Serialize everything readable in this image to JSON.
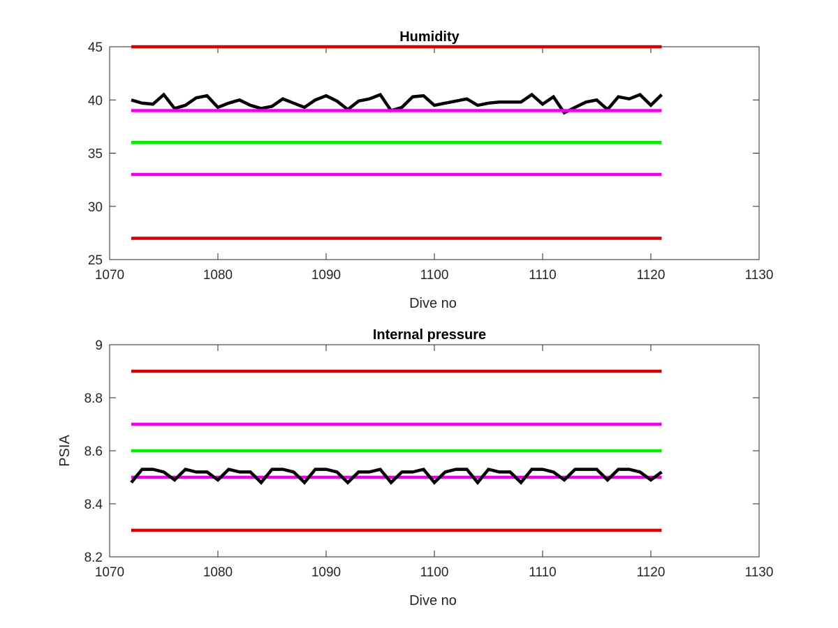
{
  "chart_data": [
    {
      "type": "line",
      "title": "Humidity",
      "xlabel": "Dive no",
      "ylabel": "",
      "xlim": [
        1070,
        1130
      ],
      "ylim": [
        25,
        45
      ],
      "xticks": [
        1070,
        1080,
        1090,
        1100,
        1110,
        1120,
        1130
      ],
      "yticks": [
        25,
        30,
        35,
        40,
        45
      ],
      "grid": false,
      "series": [
        {
          "color": "#000000",
          "x": [
            1072,
            1073,
            1074,
            1075,
            1076,
            1077,
            1078,
            1079,
            1080,
            1081,
            1082,
            1083,
            1084,
            1085,
            1086,
            1087,
            1088,
            1089,
            1090,
            1091,
            1092,
            1093,
            1094,
            1095,
            1096,
            1097,
            1098,
            1099,
            1100,
            1101,
            1102,
            1103,
            1104,
            1105,
            1106,
            1107,
            1108,
            1109,
            1110,
            1111,
            1112,
            1113,
            1114,
            1115,
            1116,
            1117,
            1118,
            1119,
            1120,
            1121
          ],
          "y": [
            40.0,
            39.7,
            39.6,
            40.5,
            39.2,
            39.5,
            40.2,
            40.4,
            39.3,
            39.7,
            40.0,
            39.5,
            39.2,
            39.4,
            40.1,
            39.7,
            39.3,
            40.0,
            40.4,
            39.9,
            39.1,
            39.9,
            40.1,
            40.5,
            39.0,
            39.3,
            40.3,
            40.4,
            39.5,
            39.7,
            39.9,
            40.1,
            39.5,
            39.7,
            39.8,
            39.8,
            39.8,
            40.5,
            39.6,
            40.3,
            38.8,
            39.3,
            39.8,
            40.0,
            39.1,
            40.3,
            40.1,
            40.5,
            39.5,
            40.5
          ]
        },
        {
          "color": "#d40000",
          "x": [
            1072,
            1121
          ],
          "y": [
            45,
            45
          ]
        },
        {
          "color": "#ee00ee",
          "x": [
            1072,
            1121
          ],
          "y": [
            39,
            39
          ]
        },
        {
          "color": "#00ee00",
          "x": [
            1072,
            1121
          ],
          "y": [
            36,
            36
          ]
        },
        {
          "color": "#ee00ee",
          "x": [
            1072,
            1121
          ],
          "y": [
            33,
            33
          ]
        },
        {
          "color": "#d40000",
          "x": [
            1072,
            1121
          ],
          "y": [
            27,
            27
          ]
        }
      ]
    },
    {
      "type": "line",
      "title": "Internal pressure",
      "xlabel": "Dive no",
      "ylabel": "PSIA",
      "xlim": [
        1070,
        1130
      ],
      "ylim": [
        8.2,
        9.0
      ],
      "xticks": [
        1070,
        1080,
        1090,
        1100,
        1110,
        1120,
        1130
      ],
      "yticks": [
        8.2,
        8.4,
        8.6,
        8.8,
        9.0
      ],
      "grid": false,
      "series": [
        {
          "color": "#d40000",
          "x": [
            1072,
            1121
          ],
          "y": [
            8.9,
            8.9
          ]
        },
        {
          "color": "#ee00ee",
          "x": [
            1072,
            1121
          ],
          "y": [
            8.7,
            8.7
          ]
        },
        {
          "color": "#00ee00",
          "x": [
            1072,
            1121
          ],
          "y": [
            8.6,
            8.6
          ]
        },
        {
          "color": "#ee00ee",
          "x": [
            1072,
            1121
          ],
          "y": [
            8.5,
            8.5
          ]
        },
        {
          "color": "#d40000",
          "x": [
            1072,
            1121
          ],
          "y": [
            8.3,
            8.3
          ]
        },
        {
          "color": "#000000",
          "x": [
            1072,
            1073,
            1074,
            1075,
            1076,
            1077,
            1078,
            1079,
            1080,
            1081,
            1082,
            1083,
            1084,
            1085,
            1086,
            1087,
            1088,
            1089,
            1090,
            1091,
            1092,
            1093,
            1094,
            1095,
            1096,
            1097,
            1098,
            1099,
            1100,
            1101,
            1102,
            1103,
            1104,
            1105,
            1106,
            1107,
            1108,
            1109,
            1110,
            1111,
            1112,
            1113,
            1114,
            1115,
            1116,
            1117,
            1118,
            1119,
            1120,
            1121
          ],
          "y": [
            8.48,
            8.53,
            8.53,
            8.52,
            8.49,
            8.53,
            8.52,
            8.52,
            8.49,
            8.53,
            8.52,
            8.52,
            8.48,
            8.53,
            8.53,
            8.52,
            8.48,
            8.53,
            8.53,
            8.52,
            8.48,
            8.52,
            8.52,
            8.53,
            8.48,
            8.52,
            8.52,
            8.53,
            8.48,
            8.52,
            8.53,
            8.53,
            8.48,
            8.53,
            8.52,
            8.52,
            8.48,
            8.53,
            8.53,
            8.52,
            8.49,
            8.53,
            8.53,
            8.53,
            8.49,
            8.53,
            8.53,
            8.52,
            8.49,
            8.52
          ]
        }
      ]
    }
  ]
}
